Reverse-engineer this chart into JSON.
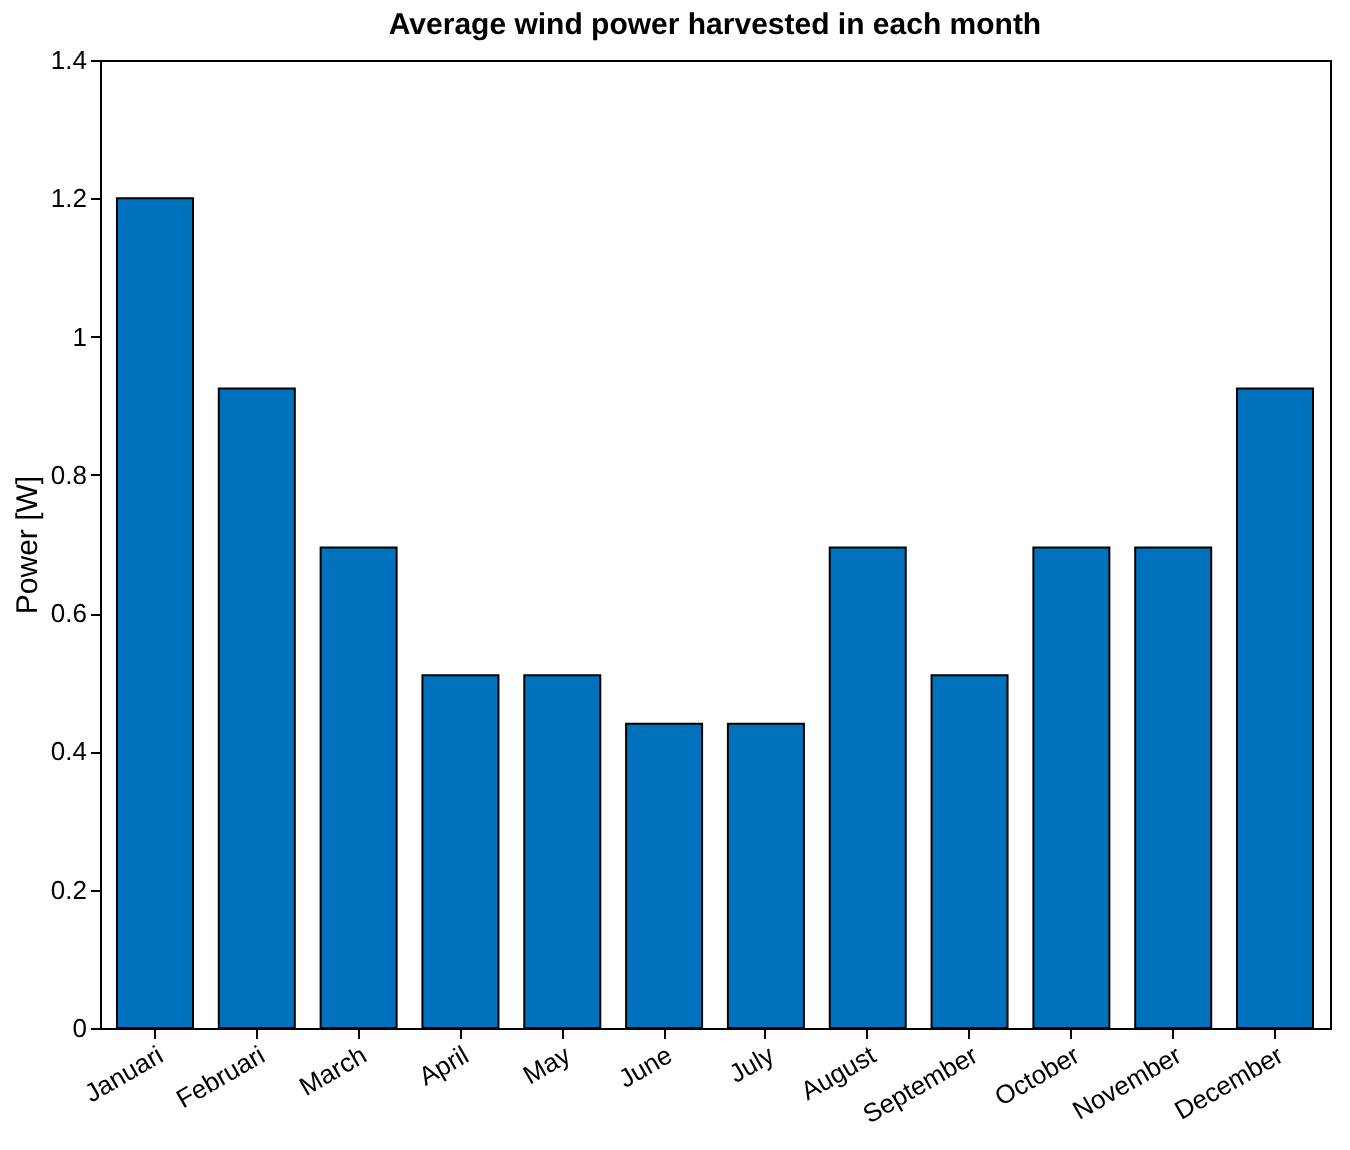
{
  "chart_data": {
    "type": "bar",
    "title": "Average wind power harvested in each month",
    "ylabel": "Power [W]",
    "categories": [
      "Januari",
      "Februari",
      "March",
      "April",
      "May",
      "June",
      "July",
      "August",
      "September",
      "October",
      "November",
      "December"
    ],
    "values": [
      1.2,
      0.925,
      0.695,
      0.51,
      0.51,
      0.44,
      0.44,
      0.695,
      0.51,
      0.695,
      0.695,
      0.925
    ],
    "color": "#0072bd",
    "ylim": [
      0,
      1.4
    ],
    "yticks": [
      0,
      0.2,
      0.4,
      0.6,
      0.8,
      1,
      1.2,
      1.4
    ],
    "grid": false
  }
}
